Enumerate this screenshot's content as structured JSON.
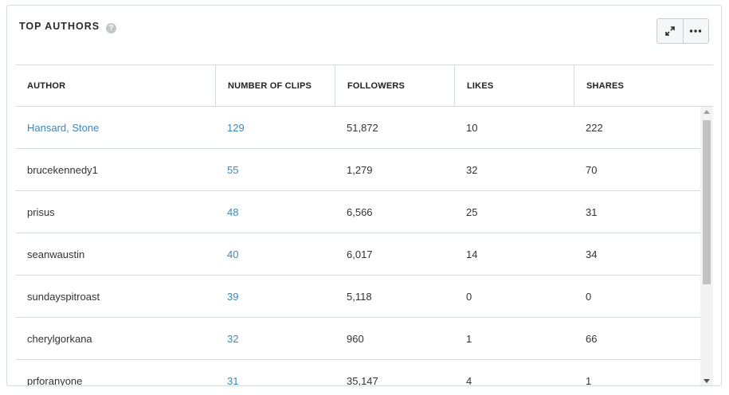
{
  "widget": {
    "title": "TOP AUTHORS",
    "help_glyph": "?"
  },
  "columns": [
    "AUTHOR",
    "NUMBER OF CLIPS",
    "FOLLOWERS",
    "LIKES",
    "SHARES"
  ],
  "rows": [
    {
      "author": "Hansard, Stone",
      "author_link": true,
      "clips": "129",
      "followers": "51,872",
      "likes": "10",
      "shares": "222"
    },
    {
      "author": "brucekennedy1",
      "author_link": false,
      "clips": "55",
      "followers": "1,279",
      "likes": "32",
      "shares": "70"
    },
    {
      "author": "prisus",
      "author_link": false,
      "clips": "48",
      "followers": "6,566",
      "likes": "25",
      "shares": "31"
    },
    {
      "author": "seanwaustin",
      "author_link": false,
      "clips": "40",
      "followers": "6,017",
      "likes": "14",
      "shares": "34"
    },
    {
      "author": "sundayspitroast",
      "author_link": false,
      "clips": "39",
      "followers": "5,118",
      "likes": "0",
      "shares": "0"
    },
    {
      "author": "cherylgorkana",
      "author_link": false,
      "clips": "32",
      "followers": "960",
      "likes": "1",
      "shares": "66"
    },
    {
      "author": "prforanyone",
      "author_link": false,
      "clips": "31",
      "followers": "35,147",
      "likes": "4",
      "shares": "1"
    }
  ],
  "toolbar": {
    "expand_icon": "expand-icon",
    "more_icon": "more-options-icon"
  },
  "colors": {
    "link": "#3e86b8",
    "border": "#d4dbe0",
    "help_icon": "#c3c7ca"
  }
}
